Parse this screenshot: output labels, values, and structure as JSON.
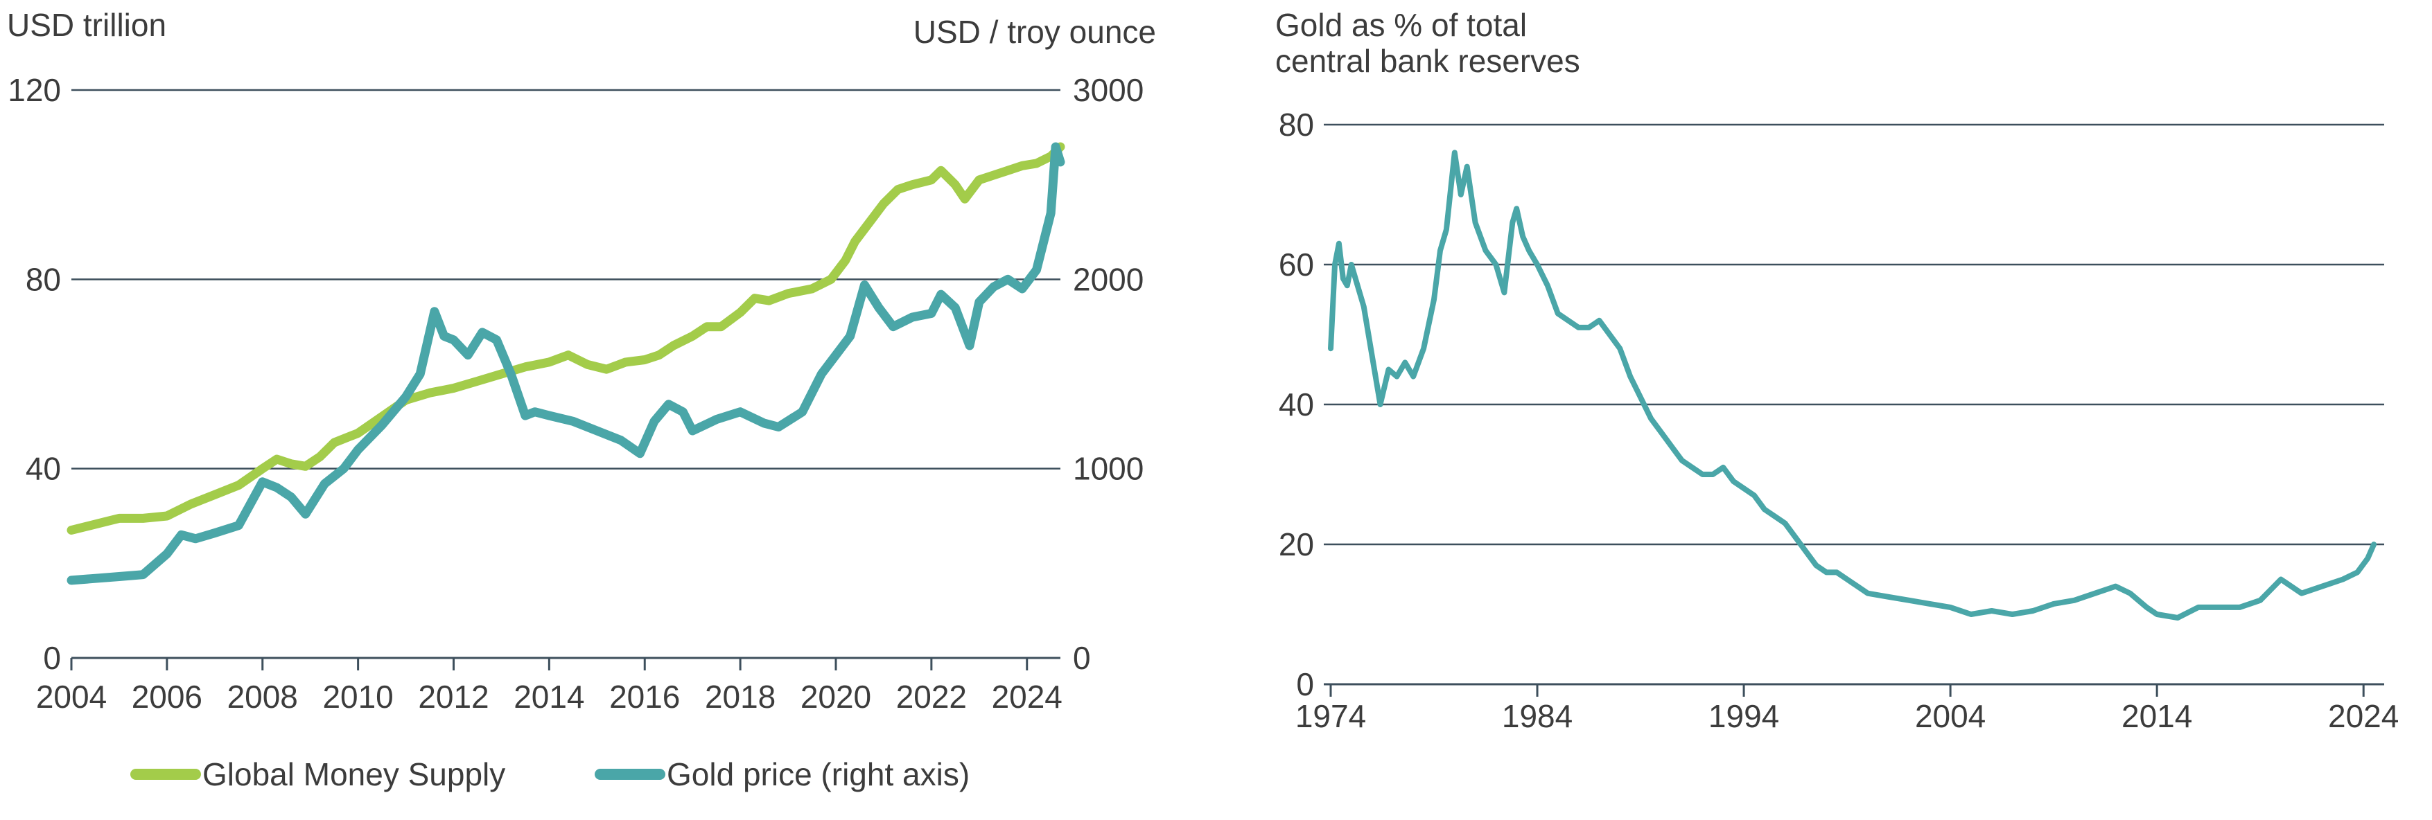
{
  "colors": {
    "money": "#a3cc4a",
    "gold": "#4aa6a8",
    "grid": "#3d4f5c",
    "text": "#3c3c3c"
  },
  "chart_data": [
    {
      "type": "line",
      "left_axis_title": "USD trillion",
      "right_axis_title": "USD / troy ounce",
      "x_ticks": [
        "2004",
        "2006",
        "2008",
        "2010",
        "2012",
        "2014",
        "2016",
        "2018",
        "2020",
        "2022",
        "2024"
      ],
      "x_tick_values": [
        2004,
        2006,
        2008,
        2010,
        2012,
        2014,
        2016,
        2018,
        2020,
        2022,
        2024
      ],
      "xlim": [
        2004,
        2024.7
      ],
      "y_left_ticks": [
        "0",
        "40",
        "80",
        "120"
      ],
      "y_left_values": [
        0,
        40,
        80,
        120
      ],
      "ylim_left": [
        0,
        120
      ],
      "y_right_ticks": [
        "0",
        "1000",
        "2000",
        "3000"
      ],
      "y_right_values": [
        0,
        1000,
        2000,
        3000
      ],
      "ylim_right": [
        0,
        3000
      ],
      "series": [
        {
          "name": "Global Money Supply",
          "axis": "left",
          "color": "#a3cc4a",
          "x": [
            2004.0,
            2004.4,
            2004.8,
            2005.0,
            2005.5,
            2006.0,
            2006.5,
            2007.0,
            2007.5,
            2008.0,
            2008.3,
            2008.6,
            2008.9,
            2009.2,
            2009.5,
            2010.0,
            2010.5,
            2011.0,
            2011.5,
            2012.0,
            2012.5,
            2013.0,
            2013.5,
            2014.0,
            2014.4,
            2014.8,
            2015.2,
            2015.6,
            2016.0,
            2016.3,
            2016.6,
            2017.0,
            2017.3,
            2017.6,
            2018.0,
            2018.3,
            2018.6,
            2019.0,
            2019.5,
            2019.9,
            2020.2,
            2020.4,
            2020.7,
            2021.0,
            2021.3,
            2021.6,
            2022.0,
            2022.2,
            2022.5,
            2022.7,
            2023.0,
            2023.3,
            2023.6,
            2023.9,
            2024.2,
            2024.5,
            2024.7
          ],
          "values": [
            27,
            28,
            29,
            29.5,
            29.5,
            30,
            32.5,
            34.5,
            36.5,
            40,
            42,
            41,
            40.5,
            42.5,
            45.5,
            47.5,
            51,
            54.5,
            56,
            57,
            58.5,
            60,
            61.5,
            62.5,
            64,
            62,
            61,
            62.5,
            63,
            64,
            66,
            68,
            70,
            70,
            73,
            76,
            75.5,
            77,
            78,
            80,
            84,
            88,
            92,
            96,
            99,
            100,
            101,
            103,
            100,
            97,
            101,
            102,
            103,
            104,
            104.5,
            106,
            108
          ]
        },
        {
          "name": "Gold price (right axis)",
          "axis": "right",
          "color": "#4aa6a8",
          "x": [
            2004.0,
            2004.5,
            2005.0,
            2005.5,
            2006.0,
            2006.3,
            2006.6,
            2007.0,
            2007.5,
            2008.0,
            2008.3,
            2008.6,
            2008.9,
            2009.3,
            2009.7,
            2010.0,
            2010.5,
            2011.0,
            2011.3,
            2011.6,
            2011.8,
            2012.0,
            2012.3,
            2012.6,
            2012.9,
            2013.2,
            2013.5,
            2013.7,
            2014.0,
            2014.5,
            2015.0,
            2015.5,
            2015.9,
            2016.2,
            2016.5,
            2016.8,
            2017.0,
            2017.5,
            2018.0,
            2018.5,
            2018.8,
            2019.3,
            2019.7,
            2020.0,
            2020.3,
            2020.6,
            2020.9,
            2021.2,
            2021.6,
            2022.0,
            2022.2,
            2022.5,
            2022.8,
            2023.0,
            2023.3,
            2023.6,
            2023.9,
            2024.2,
            2024.5,
            2024.6,
            2024.7
          ],
          "values": [
            410,
            420,
            430,
            440,
            550,
            650,
            630,
            660,
            700,
            930,
            900,
            850,
            760,
            920,
            1000,
            1100,
            1230,
            1380,
            1500,
            1830,
            1700,
            1680,
            1600,
            1720,
            1680,
            1500,
            1280,
            1300,
            1280,
            1250,
            1200,
            1150,
            1080,
            1250,
            1340,
            1300,
            1200,
            1260,
            1300,
            1240,
            1220,
            1300,
            1500,
            1600,
            1700,
            1970,
            1850,
            1750,
            1800,
            1820,
            1920,
            1850,
            1650,
            1880,
            1960,
            2000,
            1950,
            2050,
            2350,
            2700,
            2620
          ]
        }
      ],
      "legend": [
        {
          "label": "Global Money Supply",
          "color": "#a3cc4a"
        },
        {
          "label": "Gold price (right axis)",
          "color": "#4aa6a8"
        }
      ],
      "legend_position": "bottom",
      "grid": true
    },
    {
      "type": "line",
      "title_lines": [
        "Gold as % of total",
        "central bank reserves"
      ],
      "x_ticks": [
        "1974",
        "1984",
        "1994",
        "2004",
        "2014",
        "2024"
      ],
      "x_tick_values": [
        1974,
        1984,
        1994,
        2004,
        2014,
        2024
      ],
      "xlim": [
        1974,
        2025
      ],
      "y_ticks": [
        "0",
        "20",
        "40",
        "60",
        "80"
      ],
      "y_values": [
        0,
        20,
        40,
        60,
        80
      ],
      "ylim": [
        0,
        80
      ],
      "grid": true,
      "series": [
        {
          "name": "Gold as % of total central bank reserves",
          "color": "#4aa6a8",
          "x": [
            1974.0,
            1974.2,
            1974.4,
            1974.6,
            1974.8,
            1975.0,
            1975.3,
            1975.6,
            1976.0,
            1976.4,
            1976.8,
            1977.2,
            1977.6,
            1978.0,
            1978.5,
            1979.0,
            1979.3,
            1979.6,
            1980.0,
            1980.3,
            1980.6,
            1981.0,
            1981.5,
            1982.0,
            1982.4,
            1982.8,
            1983.0,
            1983.3,
            1983.6,
            1984.0,
            1984.5,
            1985.0,
            1985.5,
            1986.0,
            1986.5,
            1987.0,
            1987.5,
            1988.0,
            1988.5,
            1989.0,
            1989.5,
            1990.0,
            1990.5,
            1991.0,
            1991.5,
            1992.0,
            1992.5,
            1993.0,
            1993.5,
            1994.0,
            1994.5,
            1995.0,
            1995.5,
            1996.0,
            1996.5,
            1997.0,
            1997.5,
            1998.0,
            1998.5,
            1999.0,
            1999.5,
            2000.0,
            2001.0,
            2002.0,
            2003.0,
            2004.0,
            2005.0,
            2006.0,
            2007.0,
            2008.0,
            2009.0,
            2010.0,
            2011.0,
            2012.0,
            2012.7,
            2013.5,
            2014.0,
            2015.0,
            2016.0,
            2017.0,
            2018.0,
            2019.0,
            2020.0,
            2020.5,
            2021.0,
            2022.0,
            2023.0,
            2023.7,
            2024.2,
            2024.5
          ],
          "values": [
            48,
            60,
            63,
            58,
            57,
            60,
            57,
            54,
            47,
            40,
            45,
            44,
            46,
            44,
            48,
            55,
            62,
            65,
            76,
            70,
            74,
            66,
            62,
            60,
            56,
            66,
            68,
            64,
            62,
            60,
            57,
            53,
            52,
            51,
            51,
            52,
            50,
            48,
            44,
            41,
            38,
            36,
            34,
            32,
            31,
            30,
            30,
            31,
            29,
            28,
            27,
            25,
            24,
            23,
            21,
            19,
            17,
            16,
            16,
            15,
            14,
            13,
            12.5,
            12,
            11.5,
            11,
            10,
            10.5,
            10,
            10.5,
            11.5,
            12,
            13,
            14,
            13,
            11,
            10,
            9.5,
            11,
            11,
            11,
            12,
            15,
            14,
            13,
            14,
            15,
            16,
            18,
            20
          ]
        }
      ]
    }
  ]
}
